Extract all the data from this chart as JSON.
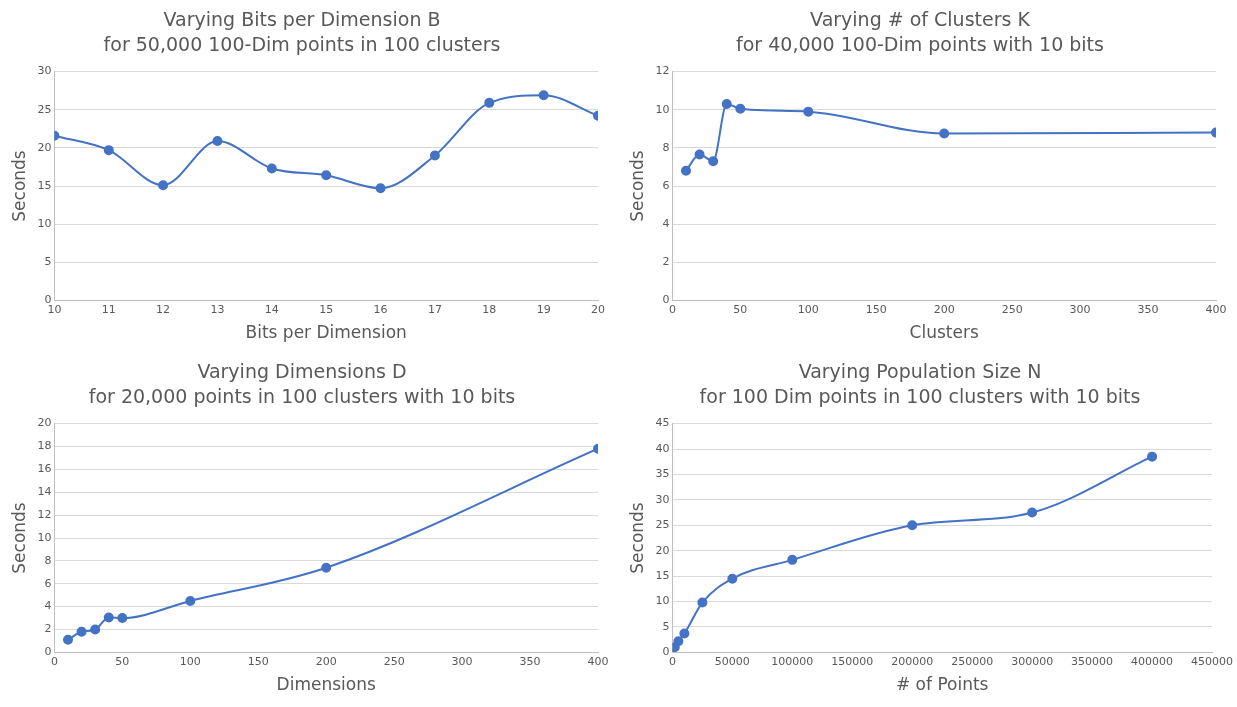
{
  "chart_data": [
    {
      "type": "line",
      "title": "Varying Bits per Dimension B",
      "subtitle": "for 50,000 100-Dim points in 100 clusters",
      "xlabel": "Bits per Dimension",
      "ylabel": "Seconds",
      "x": [
        10,
        11,
        12,
        13,
        14,
        15,
        16,
        17,
        18,
        19,
        20
      ],
      "series": [
        {
          "color": "#4472c4",
          "values": [
            21.6,
            19.7,
            15.1,
            20.9,
            17.3,
            16.4,
            14.7,
            19.0,
            25.9,
            26.9,
            24.2
          ]
        }
      ],
      "xlim": [
        10,
        20
      ],
      "xticks": [
        10,
        11,
        12,
        13,
        14,
        15,
        16,
        17,
        18,
        19,
        20
      ],
      "ylim": [
        0,
        30
      ],
      "yticks": [
        0,
        5,
        10,
        15,
        20,
        25,
        30
      ],
      "grid": "y",
      "legend": false,
      "marker": "circle",
      "line_style": "solid"
    },
    {
      "type": "line",
      "title": "Varying # of Clusters K",
      "subtitle": "for 40,000 100-Dim points with 10 bits",
      "xlabel": "Clusters",
      "ylabel": "Seconds",
      "x": [
        10,
        20,
        30,
        40,
        50,
        100,
        200,
        400
      ],
      "series": [
        {
          "color": "#4472c4",
          "values": [
            6.8,
            7.65,
            7.3,
            10.3,
            10.05,
            9.9,
            8.75,
            8.8
          ]
        }
      ],
      "xlim": [
        0,
        400
      ],
      "xticks": [
        0,
        50,
        100,
        150,
        200,
        250,
        300,
        350,
        400
      ],
      "ylim": [
        0,
        12
      ],
      "yticks": [
        0,
        2,
        4,
        6,
        8,
        10,
        12
      ],
      "grid": "y",
      "legend": false,
      "marker": "circle",
      "line_style": "solid"
    },
    {
      "type": "line",
      "title": "Varying Dimensions D",
      "subtitle": "for 20,000 points in 100 clusters with 10 bits",
      "xlabel": "Dimensions",
      "ylabel": "Seconds",
      "x": [
        10,
        20,
        30,
        40,
        50,
        100,
        200,
        400
      ],
      "series": [
        {
          "color": "#4472c4",
          "values": [
            1.1,
            1.8,
            2.0,
            3.05,
            3.0,
            4.5,
            7.4,
            17.8
          ]
        }
      ],
      "xlim": [
        0,
        400
      ],
      "xticks": [
        0,
        50,
        100,
        150,
        200,
        250,
        300,
        350,
        400
      ],
      "ylim": [
        0,
        20
      ],
      "yticks": [
        0,
        2,
        4,
        6,
        8,
        10,
        12,
        14,
        16,
        18,
        20
      ],
      "grid": "y",
      "legend": false,
      "marker": "circle",
      "line_style": "solid"
    },
    {
      "type": "line",
      "title": "Varying Population Size N",
      "subtitle": "for 100 Dim points in 100 clusters with 10 bits",
      "xlabel": "# of Points",
      "ylabel": "Seconds",
      "x": [
        2000,
        5000,
        10000,
        25000,
        50000,
        100000,
        200000,
        300000,
        400000
      ],
      "series": [
        {
          "color": "#4472c4",
          "values": [
            1.0,
            2.2,
            3.7,
            9.8,
            14.5,
            18.2,
            25.0,
            27.5,
            38.5
          ]
        }
      ],
      "xlim": [
        0,
        450000
      ],
      "xticks": [
        0,
        50000,
        100000,
        150000,
        200000,
        250000,
        300000,
        350000,
        400000,
        450000
      ],
      "ylim": [
        0,
        45
      ],
      "yticks": [
        0,
        5,
        10,
        15,
        20,
        25,
        30,
        35,
        40,
        45
      ],
      "grid": "y",
      "legend": false,
      "marker": "circle",
      "line_style": "solid"
    }
  ]
}
